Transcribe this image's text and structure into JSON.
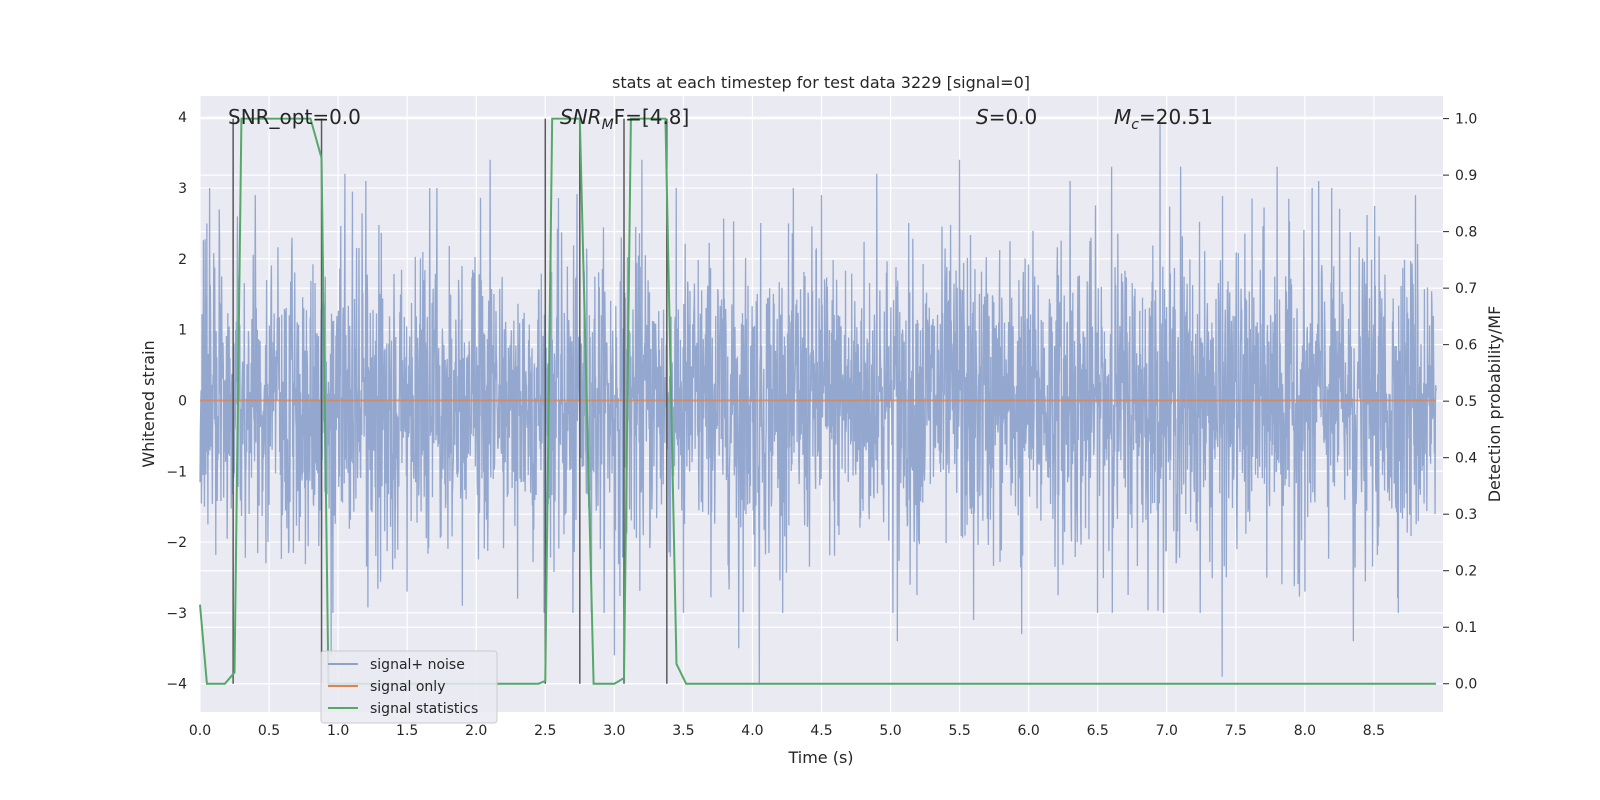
{
  "chart_data": {
    "type": "line",
    "title": "stats at each timestep for test data 3229 [signal=0]",
    "xlabel": "Time (s)",
    "ylabel_left": "Whitened strain",
    "ylabel_right": "Detection probability/MF",
    "xlim": [
      0.0,
      9.0
    ],
    "ylim_left": [
      -4.4,
      4.3
    ],
    "ylim_right": [
      -0.05,
      1.04
    ],
    "x_ticks": [
      0.0,
      0.5,
      1.0,
      1.5,
      2.0,
      2.5,
      3.0,
      3.5,
      4.0,
      4.5,
      5.0,
      5.5,
      6.0,
      6.5,
      7.0,
      7.5,
      8.0,
      8.5
    ],
    "x_tick_labels": [
      "0.0",
      "0.5",
      "1.0",
      "1.5",
      "2.0",
      "2.5",
      "3.0",
      "3.5",
      "4.0",
      "4.5",
      "5.0",
      "5.5",
      "6.0",
      "6.5",
      "7.0",
      "7.5",
      "8.0",
      "8.5"
    ],
    "y_left_ticks": [
      4,
      3,
      2,
      1,
      0,
      -1,
      -2,
      -3,
      -4
    ],
    "y_left_tick_labels": [
      "4",
      "3",
      "2",
      "1",
      "0",
      "−1",
      "−2",
      "−3",
      "−4"
    ],
    "y_right_ticks": [
      1.0,
      0.9,
      0.8,
      0.7,
      0.6,
      0.5,
      0.4,
      0.3,
      0.2,
      0.1,
      0.0
    ],
    "y_right_tick_labels": [
      "1.0",
      "0.9",
      "0.8",
      "0.7",
      "0.6",
      "0.5",
      "0.4",
      "0.3",
      "0.2",
      "0.1",
      "0.0"
    ],
    "grid": true,
    "legend_position": "lower-left",
    "annotations": {
      "snr_opt": "SNR_opt=0.0",
      "snr_mf_main": "SNR",
      "snr_mf_sub": "M",
      "snr_mf_tail": "F=[4.8]",
      "s_var": "S",
      "s_val": "=0.0",
      "mc_var": "M",
      "mc_sub": "c",
      "mc_val": "=20.51"
    },
    "series": [
      {
        "name": "signal+ noise",
        "color": "#8ea3cc",
        "axis": "left",
        "description_values": {
          "typical_band": [
            -1.6,
            1.6
          ],
          "max_peak": 3.9,
          "min_peak": -4.0,
          "time_range": [
            0.0,
            8.95
          ]
        },
        "peaks": [
          [
            0.05,
            2.5
          ],
          [
            0.27,
            2.6
          ],
          [
            0.4,
            2.9
          ],
          [
            0.95,
            -3.6
          ],
          [
            1.05,
            3.2
          ],
          [
            1.2,
            3.1
          ],
          [
            1.5,
            -2.7
          ],
          [
            1.9,
            -2.9
          ],
          [
            2.1,
            3.4
          ],
          [
            2.3,
            -2.8
          ],
          [
            2.7,
            -3.0
          ],
          [
            3.0,
            -3.6
          ],
          [
            3.2,
            3.4
          ],
          [
            3.5,
            -3.0
          ],
          [
            3.9,
            -3.5
          ],
          [
            4.05,
            -4.0
          ],
          [
            4.5,
            2.9
          ],
          [
            4.9,
            3.2
          ],
          [
            5.05,
            -3.4
          ],
          [
            5.5,
            3.4
          ],
          [
            5.6,
            -3.1
          ],
          [
            5.95,
            -3.3
          ],
          [
            6.3,
            3.1
          ],
          [
            6.6,
            3.3
          ],
          [
            6.95,
            3.9
          ],
          [
            7.1,
            3.3
          ],
          [
            7.4,
            -3.9
          ],
          [
            7.8,
            3.3
          ],
          [
            8.1,
            3.1
          ],
          [
            8.35,
            -3.4
          ],
          [
            8.8,
            2.9
          ]
        ]
      },
      {
        "name": "signal only",
        "color": "#dd8452",
        "axis": "left",
        "x": [
          0.0,
          8.95
        ],
        "y": [
          0.0,
          0.0
        ]
      },
      {
        "name": "signal statistics",
        "color": "#55a868",
        "axis": "right",
        "x": [
          0.0,
          0.05,
          0.18,
          0.25,
          0.3,
          0.8,
          0.88,
          0.93,
          1.0,
          2.0,
          2.45,
          2.5,
          2.55,
          2.75,
          2.85,
          3.0,
          3.07,
          3.12,
          3.37,
          3.45,
          3.52,
          4.0,
          8.95
        ],
        "y": [
          0.14,
          0.0,
          0.0,
          0.02,
          1.0,
          1.0,
          0.93,
          0.0,
          0.0,
          0.0,
          0.0,
          0.005,
          1.0,
          1.0,
          0.0,
          0.0,
          0.01,
          1.0,
          1.0,
          0.035,
          0.0,
          0.0,
          0.0
        ]
      }
    ],
    "vertical_markers": {
      "color": "#5a5a5a",
      "x": [
        0.24,
        0.88,
        2.5,
        2.75,
        3.07,
        3.38
      ]
    }
  }
}
